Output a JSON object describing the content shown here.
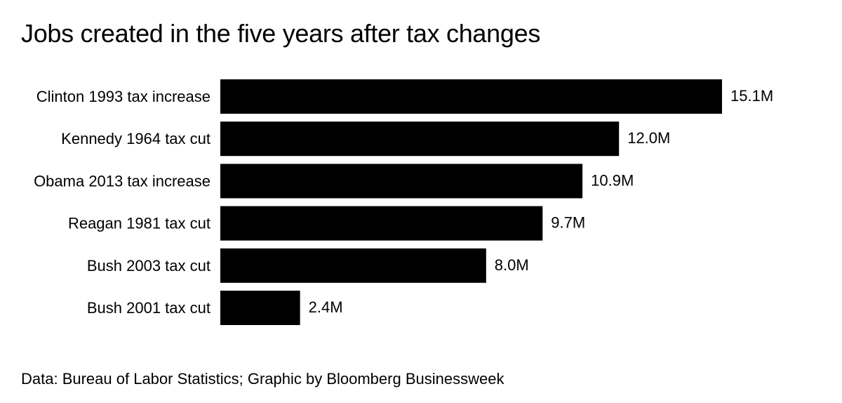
{
  "chart_data": {
    "type": "bar",
    "orientation": "horizontal",
    "title": "Jobs created in the five years after tax changes",
    "categories": [
      "Clinton 1993 tax increase",
      "Kennedy 1964 tax cut",
      "Obama 2013 tax increase",
      "Reagan 1981 tax cut",
      "Bush 2003 tax cut",
      "Bush 2001 tax cut"
    ],
    "values": [
      15.1,
      12.0,
      10.9,
      9.7,
      8.0,
      2.4
    ],
    "value_labels": [
      "15.1M",
      "12.0M",
      "10.9M",
      "9.7M",
      "8.0M",
      "2.4M"
    ],
    "unit": "M",
    "xlabel": "",
    "ylabel": "",
    "xlim": [
      0,
      15.1
    ],
    "grid": false,
    "bar_color": "#000000",
    "source": "Data: Bureau of Labor Statistics; Graphic by Bloomberg Businessweek"
  }
}
